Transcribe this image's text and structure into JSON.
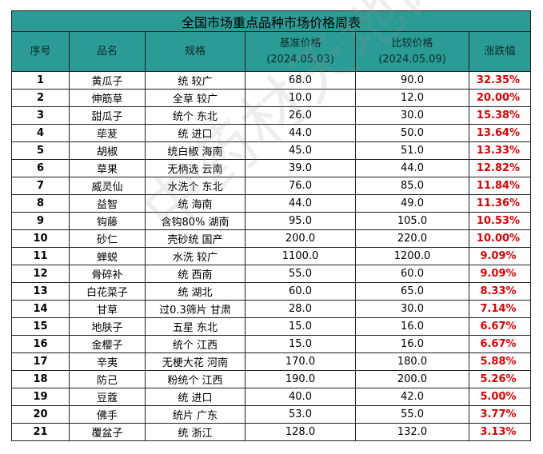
{
  "table": {
    "title": "全国市场重点品种市场价格周表",
    "headers": {
      "index": "序号",
      "name": "品名",
      "spec": "规格",
      "base_price": "基准价格",
      "base_date": "(2024.05.03)",
      "compare_price": "比较价格",
      "compare_date": "(2024.05.09)",
      "change": "涨跌幅"
    },
    "rows": [
      {
        "idx": "1",
        "name": "黄瓜子",
        "spec": "统 较广",
        "base": "68.0",
        "compare": "90.0",
        "change": "32.35%"
      },
      {
        "idx": "2",
        "name": "伸筋草",
        "spec": "全草 较广",
        "base": "10.0",
        "compare": "12.0",
        "change": "20.00%"
      },
      {
        "idx": "3",
        "name": "甜瓜子",
        "spec": "统个 东北",
        "base": "26.0",
        "compare": "30.0",
        "change": "15.38%"
      },
      {
        "idx": "4",
        "name": "荜茇",
        "spec": "统 进口",
        "base": "44.0",
        "compare": "50.0",
        "change": "13.64%"
      },
      {
        "idx": "5",
        "name": "胡椒",
        "spec": "统白椒 海南",
        "base": "45.0",
        "compare": "51.0",
        "change": "13.33%"
      },
      {
        "idx": "6",
        "name": "草果",
        "spec": "无柄选 云南",
        "base": "39.0",
        "compare": "44.0",
        "change": "12.82%"
      },
      {
        "idx": "7",
        "name": "威灵仙",
        "spec": "水洗个 东北",
        "base": "76.0",
        "compare": "85.0",
        "change": "11.84%"
      },
      {
        "idx": "8",
        "name": "益智",
        "spec": "统 海南",
        "base": "44.0",
        "compare": "49.0",
        "change": "11.36%"
      },
      {
        "idx": "9",
        "name": "钩藤",
        "spec": "含钩80% 湖南",
        "base": "95.0",
        "compare": "105.0",
        "change": "10.53%"
      },
      {
        "idx": "10",
        "name": "砂仁",
        "spec": "壳砂统 国产",
        "base": "200.0",
        "compare": "220.0",
        "change": "10.00%"
      },
      {
        "idx": "11",
        "name": "蝉蜕",
        "spec": "水洗 较广",
        "base": "1100.0",
        "compare": "1200.0",
        "change": "9.09%"
      },
      {
        "idx": "12",
        "name": "骨碎补",
        "spec": "统 西南",
        "base": "55.0",
        "compare": "60.0",
        "change": "9.09%"
      },
      {
        "idx": "13",
        "name": "白花菜子",
        "spec": "统 湖北",
        "base": "60.0",
        "compare": "65.0",
        "change": "8.33%"
      },
      {
        "idx": "14",
        "name": "甘草",
        "spec": "过0.3筛片 甘肃",
        "base": "28.0",
        "compare": "30.0",
        "change": "7.14%"
      },
      {
        "idx": "15",
        "name": "地肤子",
        "spec": "五星 东北",
        "base": "15.0",
        "compare": "16.0",
        "change": "6.67%"
      },
      {
        "idx": "16",
        "name": "金樱子",
        "spec": "统个 江西",
        "base": "15.0",
        "compare": "16.0",
        "change": "6.67%"
      },
      {
        "idx": "17",
        "name": "辛夷",
        "spec": "无梗大花 河南",
        "base": "170.0",
        "compare": "180.0",
        "change": "5.88%"
      },
      {
        "idx": "18",
        "name": "防己",
        "spec": "粉统个 江西",
        "base": "190.0",
        "compare": "200.0",
        "change": "5.26%"
      },
      {
        "idx": "19",
        "name": "豆蔻",
        "spec": "统 进口",
        "base": "40.0",
        "compare": "42.0",
        "change": "5.00%"
      },
      {
        "idx": "20",
        "name": "佛手",
        "spec": "统片 广东",
        "base": "53.0",
        "compare": "55.0",
        "change": "3.77%"
      },
      {
        "idx": "21",
        "name": "覆盆子",
        "spec": "统 浙江",
        "base": "128.0",
        "compare": "132.0",
        "change": "3.13%"
      }
    ]
  },
  "watermark": "中药材天地网",
  "colors": {
    "header_bg": "#2b9b96",
    "change_text": "#e00000",
    "border": "#1f1f1f"
  }
}
